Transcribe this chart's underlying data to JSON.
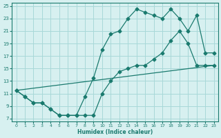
{
  "line1_x": [
    0,
    1,
    2,
    3,
    4,
    5,
    6,
    7,
    8,
    9,
    10,
    11,
    12,
    13,
    14,
    15,
    16,
    17,
    18,
    19,
    20,
    21,
    22,
    23
  ],
  "line1_y": [
    11.5,
    10.5,
    9.5,
    9.5,
    8.5,
    7.5,
    7.5,
    7.5,
    10.5,
    13.5,
    18.0,
    20.5,
    21.0,
    23.0,
    24.5,
    24.0,
    23.5,
    23.0,
    24.5,
    23.0,
    21.0,
    23.5,
    17.5,
    17.5
  ],
  "line2_x": [
    0,
    1,
    2,
    3,
    4,
    5,
    6,
    7,
    8,
    9,
    10,
    11,
    12,
    13,
    14,
    15,
    16,
    17,
    18,
    19,
    20,
    21,
    22,
    23
  ],
  "line2_y": [
    11.5,
    10.5,
    9.5,
    9.5,
    8.5,
    7.5,
    7.5,
    7.5,
    7.5,
    7.5,
    11.0,
    13.0,
    14.5,
    15.0,
    15.5,
    15.5,
    16.5,
    17.5,
    19.5,
    21.0,
    19.0,
    15.5,
    15.5,
    15.5
  ],
  "line3_x": [
    0,
    23
  ],
  "line3_y": [
    11.5,
    15.5
  ],
  "color": "#1a7a6e",
  "bg_color": "#d7f0f0",
  "grid_color": "#a8d8d8",
  "xlabel": "Humidex (Indice chaleur)",
  "xlim": [
    -0.5,
    23.5
  ],
  "ylim": [
    6.5,
    25.5
  ],
  "yticks": [
    7,
    9,
    11,
    13,
    15,
    17,
    19,
    21,
    23,
    25
  ],
  "xticks": [
    0,
    1,
    2,
    3,
    4,
    5,
    6,
    7,
    8,
    9,
    10,
    11,
    12,
    13,
    14,
    15,
    16,
    17,
    18,
    19,
    20,
    21,
    22,
    23
  ]
}
